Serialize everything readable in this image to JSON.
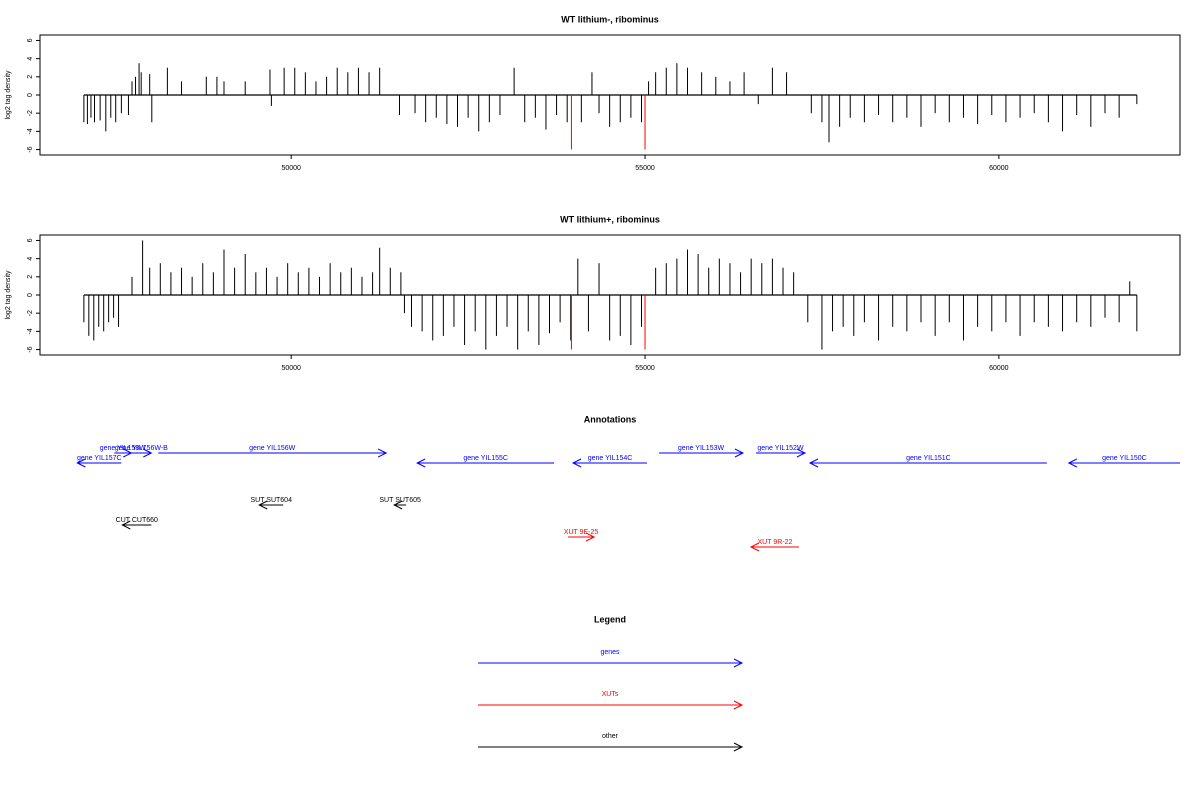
{
  "chart_data": [
    {
      "type": "needle",
      "title": "WT lithium-, ribominus",
      "y_label": "log2 tag density",
      "xlim": [
        46450,
        62560
      ],
      "ylim": [
        -6.6,
        6.6
      ],
      "xticks": [
        50000,
        55000,
        60000
      ],
      "yticks": [
        -6,
        -4,
        -2,
        0,
        2,
        4,
        6
      ],
      "series": [
        {
          "color": "#000000",
          "x": [
            47070,
            47120,
            47170,
            47220,
            47300,
            47380,
            47450,
            47520,
            47600,
            47700,
            47750,
            47800,
            47850,
            47880,
            48000,
            48030,
            48250,
            48450,
            48800,
            48950,
            49050,
            49350,
            49700,
            49720,
            49900,
            50050,
            50200,
            50350,
            50500,
            50650,
            50800,
            50950,
            51100,
            51250,
            51530,
            51750,
            51900,
            52050,
            52200,
            52350,
            52500,
            52650,
            52800,
            52950,
            53150,
            53300,
            53450,
            53600,
            53750,
            53900,
            54100,
            54250,
            54350,
            54500,
            54650,
            54800,
            54950,
            55050,
            55150,
            55300,
            55450,
            55600,
            55800,
            56000,
            56200,
            56400,
            56600,
            56800,
            57000,
            57350,
            57500,
            57600,
            57750,
            57900,
            58100,
            58300,
            58500,
            58700,
            58900,
            59100,
            59300,
            59500,
            59700,
            59900,
            60100,
            60300,
            60500,
            60700,
            60900,
            61100,
            61300,
            61500,
            61700,
            61950
          ],
          "values": [
            -3,
            -3.2,
            -2.5,
            -3,
            -2.8,
            -4,
            -2.5,
            -3,
            -2,
            -2.2,
            1.5,
            2,
            3.5,
            2.5,
            2.3,
            -3,
            3,
            1.5,
            2,
            2,
            1.5,
            1.5,
            2.8,
            -1.2,
            3,
            3,
            2.5,
            1.5,
            2,
            3,
            2.5,
            3,
            2.5,
            3,
            -2.2,
            -2,
            -3,
            -2.5,
            -3.2,
            -3.5,
            -2.5,
            -4,
            -3,
            -2.2,
            3,
            -3,
            -2.5,
            -3.8,
            -2.2,
            -3,
            -3,
            2.5,
            -2,
            -3.5,
            -3,
            -2.5,
            -3,
            1.5,
            2.5,
            3,
            3.5,
            3,
            2.5,
            2,
            1.5,
            2.5,
            -1,
            3,
            2.5,
            -2,
            -3,
            -5.2,
            -3.5,
            -2.5,
            -3,
            -2.2,
            -3,
            -2.5,
            -3.5,
            -2,
            -3,
            -2.5,
            -3.2,
            -2.2,
            -3,
            -2.5,
            -2,
            -3,
            -4,
            -2.2,
            -3.5,
            -2,
            -2.5,
            -1
          ]
        },
        {
          "color": "#ff0000",
          "x": [
            53960,
            55000
          ],
          "values": [
            -6,
            -6
          ]
        }
      ]
    },
    {
      "type": "needle",
      "title": "WT lithium+, ribominus",
      "y_label": "log2 tag density",
      "xlim": [
        46450,
        62560
      ],
      "ylim": [
        -6.6,
        6.6
      ],
      "xticks": [
        50000,
        55000,
        60000
      ],
      "yticks": [
        -6,
        -4,
        -2,
        0,
        2,
        4,
        6
      ],
      "series": [
        {
          "color": "#000000",
          "x": [
            47070,
            47140,
            47210,
            47280,
            47350,
            47420,
            47490,
            47560,
            47750,
            47900,
            48000,
            48150,
            48300,
            48450,
            48600,
            48750,
            48900,
            49050,
            49200,
            49350,
            49500,
            49650,
            49800,
            49950,
            50100,
            50250,
            50400,
            50550,
            50700,
            50850,
            51000,
            51150,
            51250,
            51400,
            51550,
            51600,
            51700,
            51850,
            52000,
            52150,
            52300,
            52450,
            52600,
            52750,
            52900,
            53050,
            53200,
            53350,
            53500,
            53650,
            53800,
            53950,
            54050,
            54200,
            54350,
            54500,
            54650,
            54800,
            54950,
            55150,
            55300,
            55450,
            55600,
            55750,
            55900,
            56050,
            56200,
            56350,
            56500,
            56650,
            56800,
            56950,
            57100,
            57300,
            57500,
            57650,
            57800,
            57950,
            58100,
            58300,
            58500,
            58700,
            58900,
            59100,
            59300,
            59500,
            59700,
            59900,
            60100,
            60300,
            60500,
            60700,
            60900,
            61100,
            61300,
            61500,
            61700,
            61850,
            61950
          ],
          "values": [
            -3,
            -4.5,
            -5,
            -3.5,
            -4,
            -3,
            -2.5,
            -3.5,
            2,
            6,
            3,
            3.5,
            2.5,
            3,
            2,
            3.5,
            2.5,
            5,
            3,
            4.5,
            2.5,
            3,
            2,
            3.5,
            2.5,
            3,
            2,
            3.5,
            2.5,
            3,
            2,
            2.5,
            5.2,
            3,
            2.5,
            -2,
            -3.5,
            -4,
            -5,
            -4.5,
            -3.5,
            -5.5,
            -4,
            -6,
            -4.5,
            -3.5,
            -6,
            -4,
            -5.5,
            -4.2,
            -3,
            -5,
            4,
            -4,
            3.5,
            -5,
            -4.5,
            -5.5,
            -3.5,
            3,
            3.5,
            4,
            5,
            4.5,
            3,
            4,
            3.5,
            2.5,
            4,
            3.5,
            4,
            3,
            2.5,
            -3,
            -6,
            -4,
            -3.5,
            -4.5,
            -3,
            -5,
            -3.5,
            -4,
            -3,
            -4.5,
            -3,
            -5,
            -3.5,
            -4,
            -3,
            -4.5,
            -3,
            -3.5,
            -4,
            -3,
            -3.5,
            -2.5,
            -3,
            1.5,
            -4
          ]
        },
        {
          "color": "#ff0000",
          "x": [
            53960,
            55000
          ],
          "values": [
            -6,
            -6
          ]
        }
      ]
    }
  ],
  "annotations": {
    "title": "Annotations",
    "xlim": [
      46450,
      62560
    ],
    "items": [
      {
        "label": "gene YIL157C",
        "start": 46977,
        "end": 47599,
        "strand": "-",
        "color": "#0000ff"
      },
      {
        "label": "gene YIL158W",
        "start": 47500,
        "end": 47740,
        "strand": "+",
        "color": "#0000ff"
      },
      {
        "label": "gene YIL156W-B",
        "start": 47740,
        "end": 48023,
        "strand": "+",
        "color": "#0000ff"
      },
      {
        "label": "gene YIL156W",
        "start": 48121,
        "end": 51342,
        "strand": "+",
        "color": "#0000ff"
      },
      {
        "label": "gene YIL155C",
        "start": 51780,
        "end": 53715,
        "strand": "-",
        "color": "#0000ff"
      },
      {
        "label": "gene YIL154C",
        "start": 53983,
        "end": 55028,
        "strand": "-",
        "color": "#0000ff"
      },
      {
        "label": "gene YIL153W",
        "start": 55198,
        "end": 56384,
        "strand": "+",
        "color": "#0000ff"
      },
      {
        "label": "gene YIL152W",
        "start": 56568,
        "end": 57260,
        "strand": "+",
        "color": "#0000ff"
      },
      {
        "label": "gene YIL151C",
        "start": 57331,
        "end": 60678,
        "strand": "-",
        "color": "#0000ff"
      },
      {
        "label": "gene YIL150C",
        "start": 60989,
        "end": 62560,
        "strand": "-",
        "color": "#0000ff"
      },
      {
        "label": "SUT SUT604",
        "start": 49548,
        "end": 49887,
        "strand": "-",
        "color": "#000000"
      },
      {
        "label": "SUT SUT605",
        "start": 51455,
        "end": 51624,
        "strand": "-",
        "color": "#000000"
      },
      {
        "label": "CUT CUT660",
        "start": 47613,
        "end": 48023,
        "strand": "-",
        "color": "#000000"
      },
      {
        "label": "XUT 9E-25",
        "start": 53912,
        "end": 54280,
        "strand": "+",
        "color": "#ff0000"
      },
      {
        "label": "XUT 9R-22",
        "start": 56497,
        "end": 57175,
        "strand": "-",
        "color": "#ff0000"
      }
    ]
  },
  "legend": {
    "title": "Legend",
    "entries": [
      {
        "label": "genes",
        "color": "#0000ff"
      },
      {
        "label": "XUTs",
        "color": "#ff0000"
      },
      {
        "label": "other",
        "color": "#000000"
      }
    ]
  }
}
